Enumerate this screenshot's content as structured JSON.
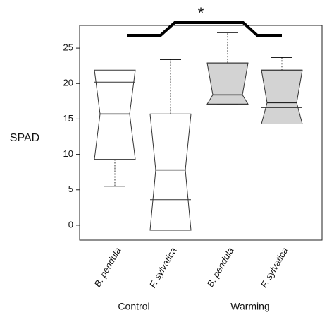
{
  "chart_data": {
    "type": "box",
    "y_label": "SPAD",
    "annotation": "*",
    "categories": [
      "B. pendula",
      "F. sylvatica",
      "B. pendula",
      "F. sylvatica"
    ],
    "groups": [
      "Control",
      "Warming"
    ],
    "colors": [
      "#ffffff",
      "#ffffff",
      "#d3d3d3",
      "#d3d3d3"
    ],
    "whisker_low": [
      5.5,
      3.4,
      17.1,
      16.3
    ],
    "q1": [
      11.3,
      3.6,
      17.1,
      16.6
    ],
    "median": [
      15.7,
      7.8,
      18.4,
      17.3
    ],
    "q3": [
      20.2,
      15.7,
      22.9,
      21.9
    ],
    "whisker_high": [
      21.4,
      23.4,
      27.2,
      23.7
    ],
    "notch_low": [
      9.3,
      -0.7,
      17.1,
      14.3
    ],
    "notch_high": [
      21.9,
      15.7,
      22.9,
      21.9
    ],
    "ylim": [
      -2.1,
      28.2
    ],
    "yticks": [
      0,
      5,
      10,
      15,
      20,
      25
    ]
  }
}
